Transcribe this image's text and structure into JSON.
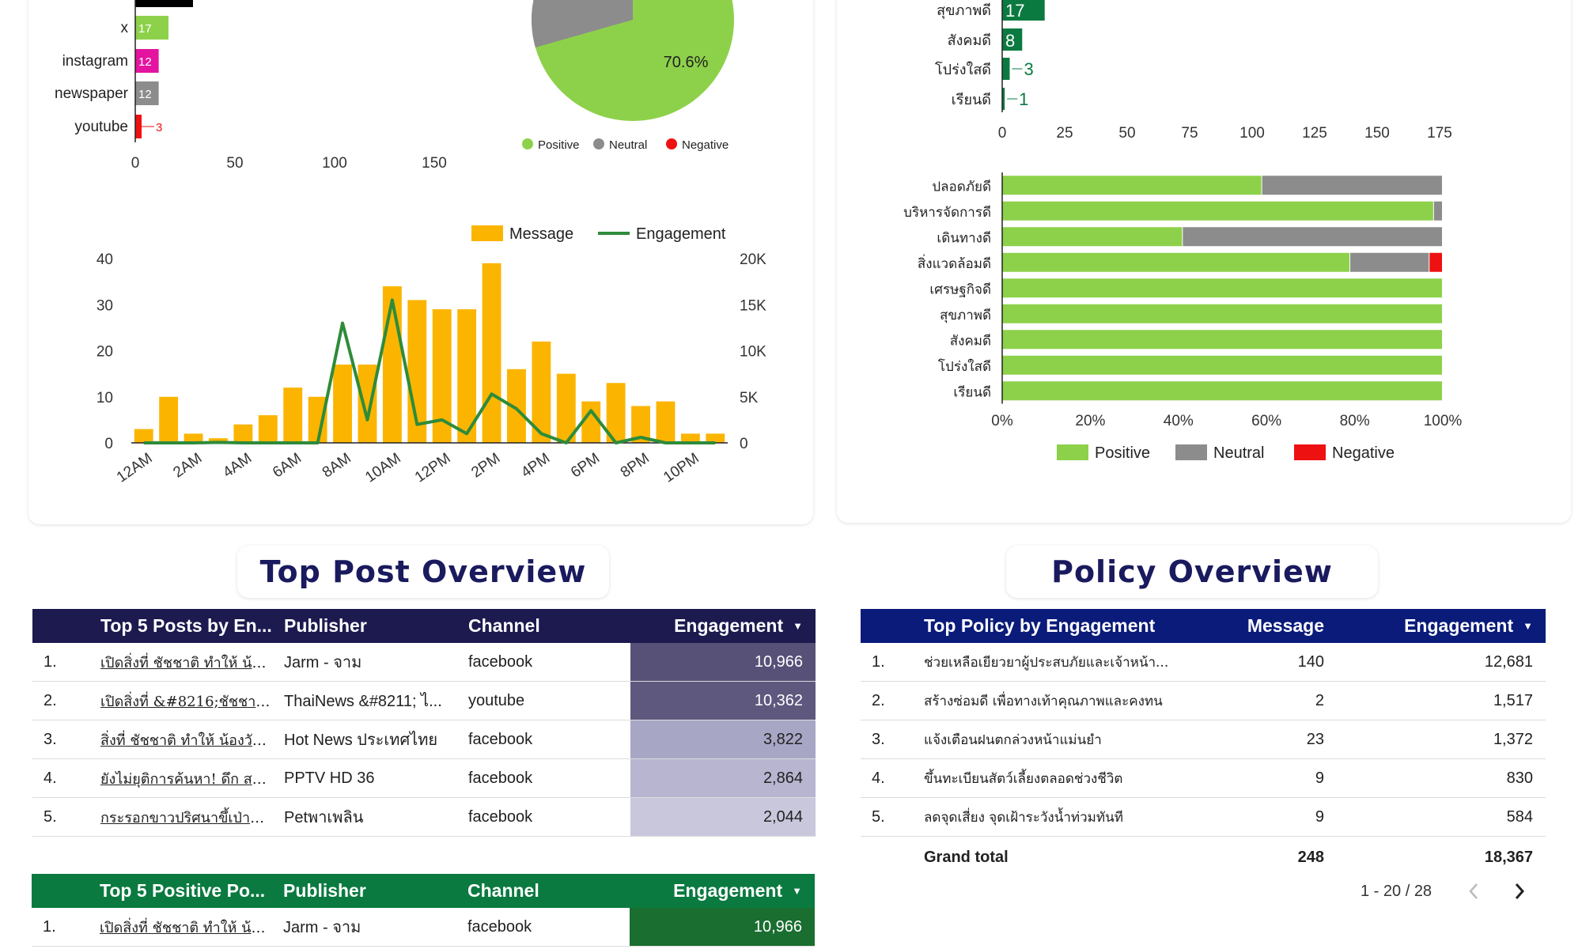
{
  "colors": {
    "positive": "#8dd14a",
    "neutral": "#8c8c8c",
    "negative": "#ee1111",
    "message": "#fbb500",
    "engagement": "#2e8b3a",
    "navy": "#1c1a4f",
    "policy_navy": "#0a1b7a",
    "green_dark": "#0a7a40"
  },
  "channel_chart": {
    "categories": [
      "x",
      "instagram",
      "newspaper",
      "youtube"
    ],
    "values": [
      17,
      12,
      12,
      3
    ],
    "label_colors": [
      "#8dd14a",
      "#e414a0",
      "#8c8c8c",
      "#ee1111"
    ],
    "x_ticks": [
      "0",
      "50",
      "100",
      "150"
    ],
    "x_max": 175
  },
  "sentiment_pie": {
    "label": "70.6%",
    "positive_pct": 70.6,
    "legend": [
      {
        "label": "Positive",
        "color": "#8dd14a"
      },
      {
        "label": "Neutral",
        "color": "#8c8c8c"
      },
      {
        "label": "Negative",
        "color": "#ee1111"
      }
    ]
  },
  "chart_data": [
    {
      "type": "bar",
      "title": "",
      "categories": [
        "12AM",
        "1AM",
        "2AM",
        "3AM",
        "4AM",
        "5AM",
        "6AM",
        "7AM",
        "8AM",
        "9AM",
        "10AM",
        "11AM",
        "12PM",
        "1PM",
        "2PM",
        "3PM",
        "4PM",
        "5PM",
        "6PM",
        "7PM",
        "8PM",
        "9PM",
        "10PM",
        "11PM"
      ],
      "x_tick_labels": [
        "12AM",
        "2AM",
        "4AM",
        "6AM",
        "8AM",
        "10AM",
        "12PM",
        "2PM",
        "4PM",
        "6PM",
        "8PM",
        "10PM"
      ],
      "series": [
        {
          "name": "Message",
          "axis": "left",
          "type": "bar",
          "values": [
            3,
            10,
            2,
            1,
            4,
            6,
            12,
            10,
            17,
            17,
            34,
            31,
            29,
            29,
            39,
            16,
            22,
            15,
            9,
            13,
            8,
            9,
            2,
            2
          ]
        },
        {
          "name": "Engagement",
          "axis": "right",
          "type": "line",
          "values": [
            0,
            0,
            0,
            50,
            0,
            0,
            0,
            0,
            13000,
            2500,
            15500,
            2000,
            2500,
            1000,
            5300,
            3700,
            1000,
            0,
            3500,
            0,
            600,
            0,
            0,
            0
          ]
        }
      ],
      "left_ticks": [
        "0",
        "10",
        "20",
        "30",
        "40"
      ],
      "right_ticks": [
        "0",
        "5K",
        "10K",
        "15K",
        "20K"
      ],
      "ylim_left": [
        0,
        40
      ],
      "ylim_right": [
        0,
        20000
      ],
      "legend": [
        "Message",
        "Engagement"
      ]
    },
    {
      "type": "bar",
      "title": "",
      "orientation": "horizontal",
      "categories": [
        "สุขภาพดี",
        "สังคมดี",
        "โปร่งใสดี",
        "เรียนดี"
      ],
      "values": [
        17,
        8,
        3,
        1
      ],
      "x_ticks": [
        "0",
        "25",
        "50",
        "75",
        "100",
        "125",
        "150",
        "175"
      ],
      "xlim": [
        0,
        180
      ]
    },
    {
      "type": "bar",
      "title": "",
      "orientation": "horizontal",
      "stacked_percent": true,
      "categories": [
        "ปลอดภัยดี",
        "บริหารจัดการดี",
        "เดินทางดี",
        "สิ่งแวดล้อมดี",
        "เศรษฐกิจดี",
        "สุขภาพดี",
        "สังคมดี",
        "โปร่งใสดี",
        "เรียนดี"
      ],
      "series": [
        {
          "name": "Positive",
          "values": [
            59,
            98,
            41,
            79,
            100,
            100,
            100,
            100,
            100
          ]
        },
        {
          "name": "Neutral",
          "values": [
            41,
            2,
            59,
            18,
            0,
            0,
            0,
            0,
            0
          ]
        },
        {
          "name": "Negative",
          "values": [
            0,
            0,
            0,
            3,
            0,
            0,
            0,
            0,
            0
          ]
        }
      ],
      "x_ticks": [
        "0%",
        "20%",
        "40%",
        "60%",
        "80%",
        "100%"
      ],
      "legend": [
        "Positive",
        "Neutral",
        "Negative"
      ]
    }
  ],
  "top_post": {
    "title": "Top Post Overview",
    "headers": {
      "post": "Top 5 Posts by En...",
      "publisher": "Publisher",
      "channel": "Channel",
      "engagement": "Engagement"
    },
    "rows": [
      {
        "n": "1.",
        "post": "เปิดสิ่งที่ ชัชชาติ ทำให้ น้อ...",
        "publisher": "Jarm - จาม",
        "channel": "facebook",
        "engagement": "10,966",
        "shade": "#575178"
      },
      {
        "n": "2.",
        "post": "เปิดสิ่งที่ &#8216;ชัชชาติ...",
        "publisher": "ThaiNews &#8211; ไ...",
        "channel": "youtube",
        "engagement": "10,362",
        "shade": "#5e587e"
      },
      {
        "n": "3.",
        "post": "สิ่งที่ ชัชชาติ ทำให้ น้องวัน...",
        "publisher": "Hot News ประเทศไทย",
        "channel": "facebook",
        "engagement": "3,822",
        "shade": "#a8a6c5"
      },
      {
        "n": "4.",
        "post": "ยังไม่ยุติการค้นหา! ดึก สต...",
        "publisher": "PPTV HD 36",
        "channel": "facebook",
        "engagement": "2,864",
        "shade": "#b7b5d0"
      },
      {
        "n": "5.",
        "post": "กระรอกขาวปริศนาขึ้เป่าช่ว...",
        "publisher": "Petพาเพลิน",
        "channel": "facebook",
        "engagement": "2,044",
        "shade": "#c8c7dc"
      }
    ]
  },
  "top_positive": {
    "headers": {
      "post": "Top 5 Positive Po...",
      "publisher": "Publisher",
      "channel": "Channel",
      "engagement": "Engagement"
    },
    "rows": [
      {
        "n": "1.",
        "post": "เปิดสิ่งที่ ชัชชาติ ทำให้ น้อ...",
        "publisher": "Jarm - จาม",
        "channel": "facebook",
        "engagement": "10,966"
      }
    ]
  },
  "policy": {
    "title": "Policy Overview",
    "headers": {
      "policy": "Top Policy by Engagement",
      "message": "Message",
      "engagement": "Engagement"
    },
    "rows": [
      {
        "n": "1.",
        "policy": "ช่วยเหลือเยียวยาผู้ประสบภัยและเจ้าหน้า...",
        "message": "140",
        "engagement": "12,681"
      },
      {
        "n": "2.",
        "policy": "สร้างซ่อมดี เพื่อทางเท้าคุณภาพและคงทน",
        "message": "2",
        "engagement": "1,517"
      },
      {
        "n": "3.",
        "policy": "แจ้งเตือนฝนตกล่วงหน้าแม่นยำ",
        "message": "23",
        "engagement": "1,372"
      },
      {
        "n": "4.",
        "policy": "ขึ้นทะเบียนสัตว์เลี้ยงตลอดช่วงชีวิต",
        "message": "9",
        "engagement": "830"
      },
      {
        "n": "5.",
        "policy": "ลดจุดเสี่ยง จุดเฝ้าระวังน้ำท่วมทันที",
        "message": "9",
        "engagement": "584"
      }
    ],
    "total_label": "Grand total",
    "total_message": "248",
    "total_engagement": "18,367",
    "pagination": "1 - 20 / 28"
  }
}
